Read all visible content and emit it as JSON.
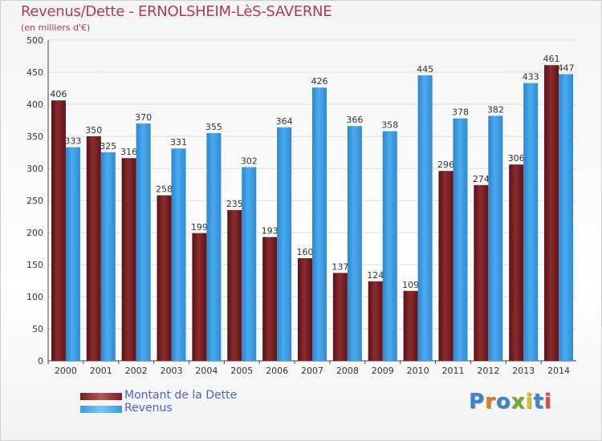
{
  "header": {
    "title": "Revenus/Dette - ERNOLSHEIM-LèS-SAVERNE",
    "subtitle": "(en milliers d'€)"
  },
  "legend": {
    "items": [
      {
        "label": "Montant de la Dette"
      },
      {
        "label": "Revenus"
      }
    ]
  },
  "logo": {
    "text": "Proxiti"
  },
  "colors": {
    "dette": "#7a1f24",
    "revenus": "#3b9be0",
    "title": "#b03a5a",
    "legend_text": "#4a63d8"
  },
  "chart_data": {
    "type": "bar",
    "title": "Revenus/Dette - ERNOLSHEIM-LèS-SAVERNE",
    "subtitle": "(en milliers d'€)",
    "categories": [
      "2000",
      "2001",
      "2002",
      "2003",
      "2004",
      "2005",
      "2006",
      "2007",
      "2008",
      "2009",
      "2010",
      "2011",
      "2012",
      "2013",
      "2014"
    ],
    "series": [
      {
        "name": "Montant de la Dette",
        "values": [
          406,
          350,
          316,
          258,
          199,
          235,
          193,
          160,
          137,
          124,
          109,
          296,
          274,
          306,
          461
        ]
      },
      {
        "name": "Revenus",
        "values": [
          333,
          325,
          370,
          331,
          355,
          302,
          364,
          426,
          366,
          358,
          445,
          378,
          382,
          433,
          447
        ]
      }
    ],
    "ylim": [
      0,
      500
    ],
    "yticks": [
      0,
      50,
      100,
      150,
      200,
      250,
      300,
      350,
      400,
      450,
      500
    ],
    "grid": true,
    "legend_position": "bottom-left"
  }
}
